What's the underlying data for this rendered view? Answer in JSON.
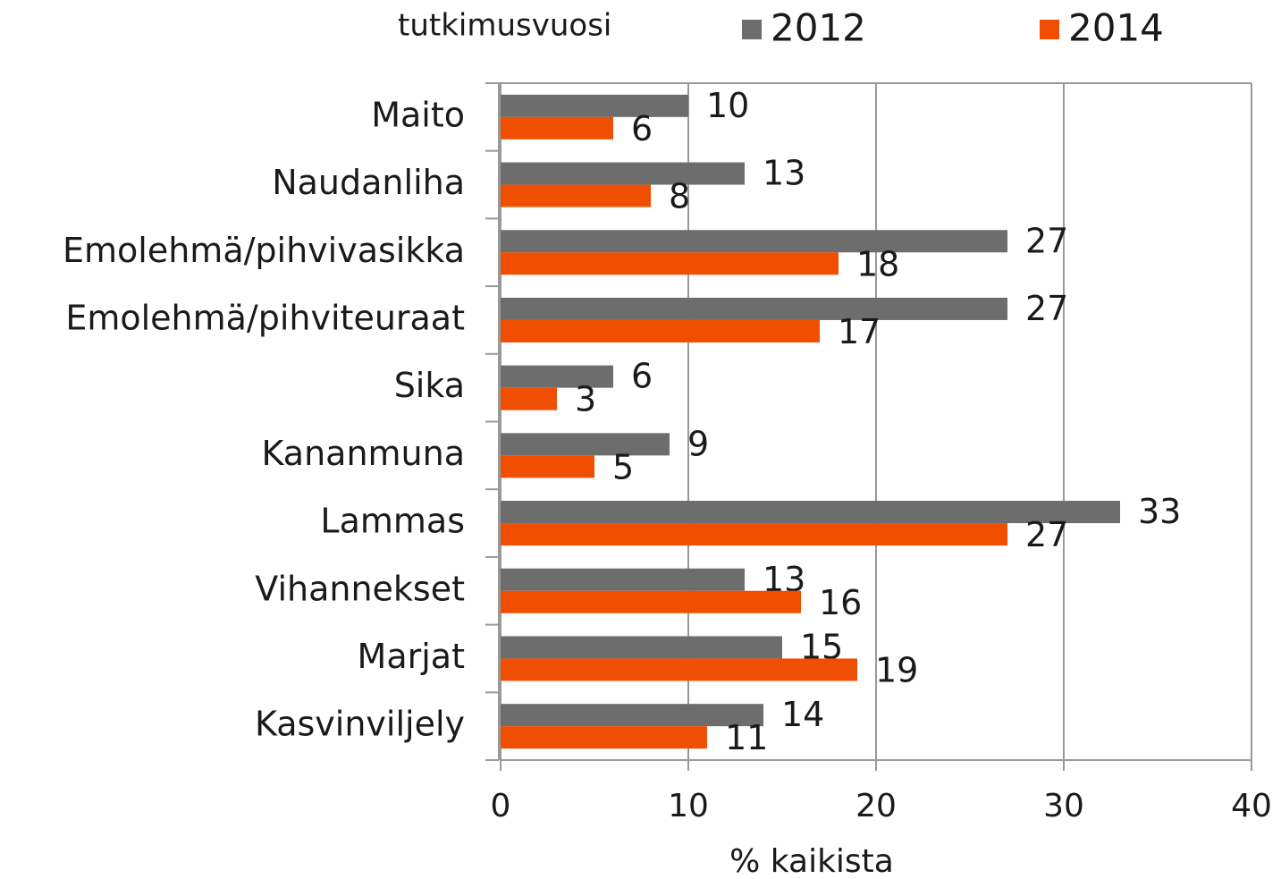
{
  "chart_data": {
    "type": "bar",
    "orientation": "horizontal",
    "legend_title": "tutkimusvuosi",
    "x_label": "% kaikista",
    "categories": [
      "Maito",
      "Naudanliha",
      "Emolehmä/pihvivasikka",
      "Emolehmä/pihviteuraat",
      "Sika",
      "Kananmuna",
      "Lammas",
      "Vihannekset",
      "Marjat",
      "Kasvinviljely"
    ],
    "series": [
      {
        "name": "2012",
        "color": "#6d6d6d",
        "values": [
          10,
          13,
          27,
          27,
          6,
          9,
          33,
          13,
          15,
          14
        ]
      },
      {
        "name": "2014",
        "color": "#f04e00",
        "values": [
          6,
          8,
          18,
          17,
          3,
          5,
          27,
          16,
          19,
          11
        ]
      }
    ],
    "xlim": [
      0,
      40
    ],
    "xticks": [
      0,
      10,
      20,
      30,
      40
    ],
    "grid": true,
    "legend": "top"
  }
}
